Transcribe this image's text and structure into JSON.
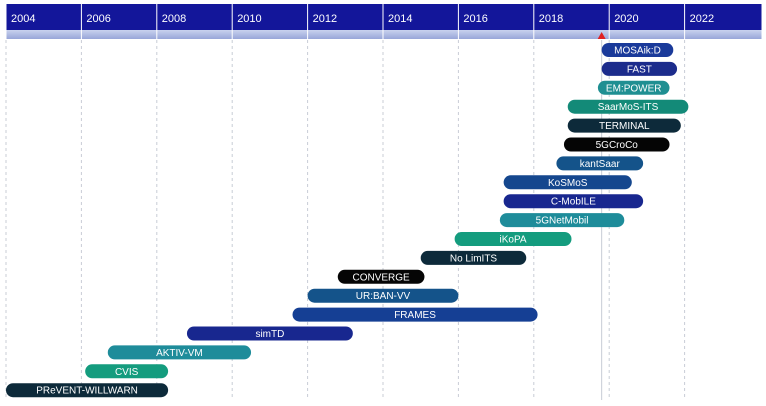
{
  "chart_data": {
    "type": "timeline",
    "title": "",
    "xlabel": "",
    "ylabel": "",
    "x_axis": {
      "ticks": [
        "2004",
        "2006",
        "2008",
        "2010",
        "2012",
        "2014",
        "2016",
        "2018",
        "2020",
        "2022"
      ],
      "range": [
        2004,
        2024
      ],
      "position": "top"
    },
    "grid": true,
    "current_marker": {
      "year": 2019.8,
      "color": "#e02020"
    },
    "projects": [
      {
        "name": "MOSAik:D",
        "start": 2019.8,
        "end": 2021.7,
        "color": "#1a3a9a"
      },
      {
        "name": "FAST",
        "start": 2019.8,
        "end": 2021.8,
        "color": "#1c2c8c"
      },
      {
        "name": "EM:POWER",
        "start": 2019.7,
        "end": 2021.6,
        "color": "#1f8f92"
      },
      {
        "name": "SaarMoS-ITS",
        "start": 2018.9,
        "end": 2022.1,
        "color": "#138a78"
      },
      {
        "name": "TERMINAL",
        "start": 2018.9,
        "end": 2021.9,
        "color": "#0d2a3a"
      },
      {
        "name": "5GCroCo",
        "start": 2018.8,
        "end": 2021.6,
        "color": "#050505"
      },
      {
        "name": "kantSaar",
        "start": 2018.6,
        "end": 2020.9,
        "color": "#14538a"
      },
      {
        "name": "KoSMoS",
        "start": 2017.2,
        "end": 2020.6,
        "color": "#15478e"
      },
      {
        "name": "C-MobILE",
        "start": 2017.2,
        "end": 2020.9,
        "color": "#18278f"
      },
      {
        "name": "5GNetMobil",
        "start": 2017.1,
        "end": 2020.4,
        "color": "#1e8c9a"
      },
      {
        "name": "iKoPA",
        "start": 2015.9,
        "end": 2019.0,
        "color": "#149c7e"
      },
      {
        "name": "No LimITS",
        "start": 2015.0,
        "end": 2017.8,
        "color": "#0d2a3a"
      },
      {
        "name": "CONVERGE",
        "start": 2012.8,
        "end": 2015.1,
        "color": "#050505"
      },
      {
        "name": "UR:BAN-VV",
        "start": 2012.0,
        "end": 2016.0,
        "color": "#14538a"
      },
      {
        "name": "FRAMES",
        "start": 2011.6,
        "end": 2018.1,
        "color": "#153f94"
      },
      {
        "name": "simTD",
        "start": 2008.8,
        "end": 2013.2,
        "color": "#18278f"
      },
      {
        "name": "AKTIV-VM",
        "start": 2006.7,
        "end": 2010.5,
        "color": "#1e8c9a"
      },
      {
        "name": "CVIS",
        "start": 2006.1,
        "end": 2008.3,
        "color": "#149c7e"
      },
      {
        "name": "PReVENT-WILLWARN",
        "start": 2004.0,
        "end": 2008.3,
        "color": "#0d2a3a"
      }
    ]
  }
}
